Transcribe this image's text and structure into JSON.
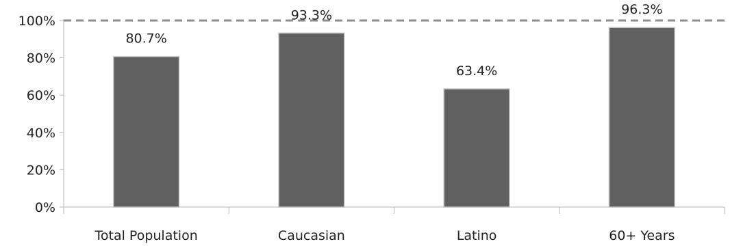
{
  "chart_data": {
    "type": "bar",
    "categories": [
      "Total Population",
      "Caucasian",
      "Latino",
      "60+ Years"
    ],
    "values": [
      80.7,
      93.3,
      63.4,
      96.3
    ],
    "data_labels": [
      "80.7%",
      "93.3%",
      "63.4%",
      "96.3%"
    ],
    "yticks": [
      "0%",
      "20%",
      "40%",
      "60%",
      "80%",
      "100%"
    ],
    "ylim": [
      0,
      100
    ],
    "reference_line": 100,
    "title": "",
    "xlabel": "",
    "ylabel": "",
    "grid": false,
    "legend": "none",
    "bar_color": "#606060",
    "reference_line_color": "#8c8c8c"
  }
}
